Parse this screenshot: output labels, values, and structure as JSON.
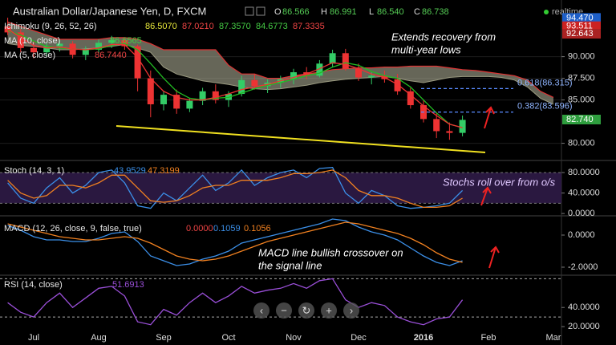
{
  "header": {
    "title": "Australian Dollar/Japanese Yen, D, FXCM",
    "ohlc": [
      {
        "key": "O",
        "value": "86.566"
      },
      {
        "key": "H",
        "value": "86.991"
      },
      {
        "key": "L",
        "value": "86.540"
      },
      {
        "key": "C",
        "value": "86.738"
      }
    ],
    "status": "realtime"
  },
  "chart_data": [
    {
      "type": "candlestick",
      "categories": [
        null,
        null,
        "Jul",
        null,
        null,
        null,
        null,
        "Aug",
        null,
        null,
        null,
        null,
        "Sep",
        null,
        null,
        null,
        null,
        "Oct",
        null,
        null,
        null,
        null,
        "Nov",
        null,
        null,
        null,
        null,
        "Dec",
        null,
        null,
        null,
        null,
        "2016",
        null,
        null,
        null,
        null,
        "Feb",
        null,
        null,
        null,
        null,
        "Mar"
      ],
      "open": [
        93.5,
        92.8,
        91.0,
        90.5,
        91.2,
        91.5,
        90.2,
        90.8,
        91.6,
        91.9,
        91.2,
        87.5,
        84.5,
        85.6,
        84.0,
        84.9,
        86.0,
        85.0,
        85.7,
        87.3,
        86.6,
        87.0,
        87.4,
        88.2,
        87.8,
        89.2,
        90.4,
        88.6,
        87.6,
        87.8,
        87.4,
        86.0,
        84.4,
        82.8,
        81.4,
        81.2,
        null,
        null,
        null,
        null,
        null,
        null,
        null
      ],
      "high": [
        94.5,
        93.2,
        91.8,
        91.6,
        92.0,
        91.8,
        91.2,
        92.0,
        92.4,
        92.2,
        91.4,
        88.4,
        86.0,
        86.2,
        85.2,
        86.4,
        86.8,
        86.0,
        87.8,
        88.0,
        87.4,
        87.8,
        88.6,
        88.8,
        89.6,
        90.8,
        90.9,
        89.2,
        88.2,
        88.4,
        88.0,
        86.4,
        85.0,
        83.6,
        82.4,
        83.2,
        null,
        null,
        null,
        null,
        null,
        null,
        null
      ],
      "low": [
        92.5,
        90.5,
        89.8,
        90.0,
        90.6,
        89.8,
        89.6,
        90.4,
        91.0,
        90.8,
        86.0,
        83.0,
        83.8,
        83.4,
        83.6,
        84.4,
        84.6,
        84.2,
        85.4,
        86.2,
        85.8,
        86.4,
        86.8,
        87.4,
        87.6,
        88.8,
        88.4,
        87.2,
        86.8,
        87.0,
        85.6,
        84.0,
        82.4,
        80.6,
        80.4,
        80.8,
        null,
        null,
        null,
        null,
        null,
        null,
        null
      ],
      "close": [
        92.8,
        91.0,
        90.5,
        91.2,
        91.5,
        90.2,
        90.8,
        91.6,
        91.9,
        91.2,
        87.5,
        84.5,
        85.6,
        84.0,
        84.9,
        86.0,
        85.0,
        85.7,
        87.3,
        86.6,
        87.0,
        87.4,
        88.2,
        87.8,
        89.2,
        90.4,
        88.6,
        87.6,
        87.8,
        87.4,
        86.0,
        84.4,
        82.8,
        81.4,
        81.2,
        82.7,
        null,
        null,
        null,
        null,
        null,
        null,
        null
      ],
      "up_color": "#33cc66",
      "down_color": "#ee3333",
      "cloud": {
        "name": "Ichimoku (9, 26, 52, 26)",
        "readouts": [
          "86.5070",
          "87.0210",
          "87.3570",
          "84.6773",
          "87.3335"
        ],
        "readout_colors": [
          "#e8e83a",
          "#ee4444",
          "#44cc44",
          "#44cc44",
          "#ee4444"
        ],
        "color": "#b9b9a0",
        "upper": [
          94,
          93.5,
          93,
          92.5,
          92,
          92,
          92,
          92,
          92.2,
          92.2,
          92,
          91.5,
          90.8,
          90.8,
          90.8,
          90.8,
          90.8,
          89,
          88,
          88,
          87.5,
          87.5,
          87.8,
          88,
          88.2,
          88.5,
          88.6,
          88.7,
          88.7,
          88.8,
          88.8,
          88.9,
          88.9,
          88.9,
          88.7,
          88.5,
          88.4,
          88.2,
          88,
          87.8,
          87.3,
          86,
          85.3
        ],
        "lower": [
          91.5,
          91.3,
          91.2,
          91,
          90.8,
          90.8,
          90.9,
          91,
          91.2,
          91.4,
          91,
          90.5,
          88.8,
          88,
          87.6,
          87.2,
          87,
          86.8,
          86.5,
          86.3,
          86.2,
          86.3,
          86.5,
          86.7,
          87,
          87.2,
          87.4,
          87.5,
          87.6,
          87.7,
          87.5,
          87.2,
          87,
          87.3,
          87.6,
          87.7,
          87.7,
          87.7,
          87.6,
          87.3,
          86.5,
          85.2,
          84.5
        ]
      },
      "series": [
        {
          "name": "MA (10, close)",
          "readout": "86.6565",
          "color": "#22bb22",
          "values": [
            93,
            92.5,
            91.8,
            91.2,
            91,
            90.9,
            90.8,
            90.9,
            91.3,
            91.5,
            90.8,
            89.2,
            87.5,
            86,
            85.2,
            85,
            85.2,
            85.3,
            85.8,
            86.3,
            86.7,
            87,
            87.4,
            87.8,
            88.1,
            88.8,
            89.3,
            89,
            88.3,
            87.8,
            87.5,
            86.5,
            85,
            83.5,
            82.2,
            81.8,
            null,
            null,
            null,
            null,
            null,
            null,
            null
          ]
        },
        {
          "name": "MA (5, close)",
          "readout": "86.7440",
          "color": "#ee3333",
          "values": [
            93.2,
            92.2,
            91.3,
            91,
            91.1,
            90.9,
            90.8,
            91,
            91.4,
            91.4,
            89.9,
            87.5,
            86,
            85.3,
            85,
            85,
            85.3,
            85.7,
            86.2,
            86.5,
            86.8,
            87.2,
            87.6,
            88,
            88.6,
            89.3,
            89.1,
            88.6,
            88,
            87.6,
            86.8,
            85.6,
            84.3,
            83.2,
            82.2,
            81.8,
            null,
            null,
            null,
            null,
            null,
            null,
            null
          ]
        }
      ],
      "ylim": [
        78.2,
        95.8
      ],
      "yticks": [
        {
          "value": 80,
          "label": "80.000"
        },
        {
          "value": 85,
          "label": "85.000"
        },
        {
          "value": 87.5,
          "label": "87.500"
        },
        {
          "value": 90,
          "label": "90.000"
        }
      ],
      "grid": true,
      "price_tags": [
        {
          "value": 94.47,
          "label": "94.470",
          "color": "#1e5fc8"
        },
        {
          "value": 93.511,
          "label": "93.511",
          "color": "#cc2222"
        },
        {
          "value": 92.643,
          "label": "92.643",
          "color": "#aa2222"
        },
        {
          "value": 82.74,
          "label": "82.740",
          "color": "#2e9e3e"
        }
      ],
      "levels": [
        {
          "value": 86.315,
          "label": "0.618(86.315)"
        },
        {
          "value": 83.596,
          "label": "0.382(83.596)"
        }
      ],
      "annotation": [
        "Extends recovery from",
        "multi-year lows"
      ]
    },
    {
      "type": "line",
      "name": "Stoch (14, 3, 1)",
      "series": [
        {
          "name": "%K",
          "readout": "43.9529",
          "color": "#3b8fe8",
          "values": [
            60,
            30,
            20,
            50,
            70,
            40,
            55,
            80,
            85,
            60,
            15,
            10,
            40,
            25,
            50,
            75,
            45,
            60,
            85,
            55,
            70,
            80,
            85,
            70,
            88,
            90,
            40,
            20,
            45,
            35,
            15,
            10,
            12,
            15,
            20,
            45,
            null,
            null,
            null,
            null,
            null,
            null,
            null
          ]
        },
        {
          "name": "%D",
          "readout": "47.3199",
          "color": "#f08020",
          "values": [
            65,
            40,
            30,
            35,
            55,
            55,
            50,
            60,
            75,
            75,
            50,
            25,
            22,
            25,
            35,
            50,
            55,
            55,
            65,
            65,
            65,
            70,
            78,
            78,
            80,
            85,
            70,
            45,
            35,
            35,
            30,
            20,
            12,
            12,
            15,
            30,
            null,
            null,
            null,
            null,
            null,
            null,
            null
          ]
        }
      ],
      "band": [
        20,
        80
      ],
      "ylim": [
        -3,
        99
      ],
      "yticks": [
        {
          "value": 0,
          "label": "0.0000"
        },
        {
          "value": 40,
          "label": "40.0000"
        },
        {
          "value": 80,
          "label": "80.0000"
        }
      ],
      "annotation": [
        "Stochs roll over from o/s"
      ]
    },
    {
      "type": "line",
      "name": "MACD (12, 26, close, 9, false, true)",
      "series": [
        {
          "name": "MACD",
          "readout": "0.1059",
          "color": "#3b8fe8",
          "values": [
            0.6,
            0.3,
            -0.1,
            -0.3,
            -0.3,
            -0.4,
            -0.4,
            -0.2,
            0.1,
            0.2,
            -0.4,
            -1.3,
            -1.6,
            -1.9,
            -1.8,
            -1.5,
            -1.3,
            -1.0,
            -0.5,
            -0.3,
            -0.1,
            0.1,
            0.3,
            0.5,
            0.7,
            1.0,
            0.9,
            0.5,
            0.2,
            0.0,
            -0.3,
            -0.8,
            -1.3,
            -1.7,
            -1.9,
            -1.6,
            null,
            null,
            null,
            null,
            null,
            null,
            null
          ]
        },
        {
          "name": "Signal",
          "readout": "0.1056",
          "color": "#f08020",
          "values": [
            0.7,
            0.5,
            0.3,
            0.1,
            -0.1,
            -0.2,
            -0.3,
            -0.3,
            -0.2,
            -0.1,
            -0.2,
            -0.5,
            -0.9,
            -1.3,
            -1.5,
            -1.6,
            -1.5,
            -1.3,
            -1.0,
            -0.7,
            -0.4,
            -0.2,
            0.0,
            0.2,
            0.4,
            0.6,
            0.8,
            0.7,
            0.5,
            0.3,
            0.1,
            -0.2,
            -0.6,
            -1.1,
            -1.5,
            -1.7,
            null,
            null,
            null,
            null,
            null,
            null,
            null
          ]
        }
      ],
      "readout": "0.0000",
      "ylim": [
        -2.45,
        1.05
      ],
      "yticks": [
        {
          "value": -2,
          "label": "-2.0000"
        },
        {
          "value": 0,
          "label": "0.0000"
        }
      ],
      "annotation": [
        "MACD line bullish crossover on",
        "the signal line"
      ]
    },
    {
      "type": "line",
      "name": "RSI (14, close)",
      "series": [
        {
          "name": "RSI",
          "readout": "51.6913",
          "color": "#9a4fd8",
          "values": [
            45,
            35,
            30,
            45,
            55,
            40,
            50,
            60,
            62,
            52,
            25,
            22,
            38,
            32,
            45,
            55,
            45,
            52,
            62,
            55,
            58,
            60,
            65,
            60,
            68,
            70,
            48,
            40,
            45,
            42,
            30,
            25,
            22,
            28,
            30,
            48,
            null,
            null,
            null,
            null,
            null,
            null,
            null
          ]
        }
      ],
      "levels": [
        30,
        70
      ],
      "ylim": [
        5,
        72
      ],
      "yticks": [
        {
          "value": 20,
          "label": "20.0000"
        },
        {
          "value": 40,
          "label": "40.0000"
        }
      ]
    }
  ]
}
